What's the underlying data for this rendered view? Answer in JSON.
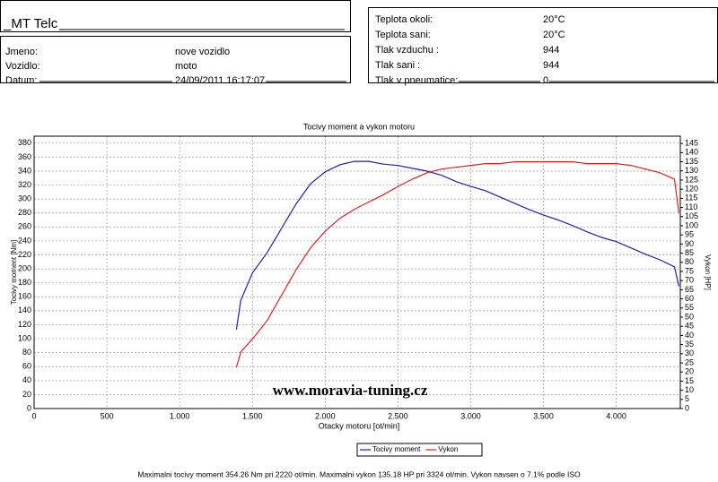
{
  "header": {
    "workshop": "_MT Telc",
    "left_rows": [
      [
        "Jmeno:",
        "nove vozidlo"
      ],
      [
        "Vozidlo:",
        "moto"
      ],
      [
        "Datum:",
        "24/09/2011 16:17:07"
      ]
    ],
    "right_rows": [
      [
        "Teplota okoli:",
        "20°C"
      ],
      [
        "Teplota sani:",
        "20°C"
      ],
      [
        "Tlak vzduchu :",
        "944"
      ],
      [
        "Tlak sani :",
        "944"
      ],
      [
        "Tlak v pneumatice:",
        "0"
      ]
    ]
  },
  "chart_data": {
    "type": "line",
    "title": "Tocivy moment a vykon motoru",
    "x_label": "Otacky motoru [ot/min]",
    "y_label": "Tocivy moment [Nm]",
    "y2_label": "Vykon [HP]",
    "watermark": "www.moravia-tuning.cz",
    "footer": "Maximalni tocivy moment 354.26 Nm pri 2220 ot/min.  Maximalni vykon 135.18 HP pri 3324 ot/min.  Vykon navsen o 7.1% podle ISO",
    "x": [
      1390,
      1420,
      1500,
      1600,
      1700,
      1800,
      1900,
      2000,
      2100,
      2200,
      2300,
      2400,
      2500,
      2600,
      2700,
      2800,
      2900,
      3000,
      3100,
      3200,
      3300,
      3400,
      3500,
      3600,
      3700,
      3800,
      3900,
      4000,
      4100,
      4200,
      4300,
      4400,
      4430
    ],
    "series": [
      {
        "name": "Tocivy moment",
        "color": "#1f1fb4",
        "values": [
          113,
          155,
          194,
          223,
          258,
          293,
          322,
          339,
          349,
          354,
          354,
          350,
          348,
          344,
          340,
          334,
          325,
          318,
          312,
          303,
          294,
          285,
          277,
          270,
          262,
          253,
          245,
          239,
          230,
          221,
          213,
          203,
          175
        ]
      },
      {
        "name": "Vykon",
        "color": "#e02020",
        "axis": "y2",
        "values": [
          22.5,
          31,
          38,
          48,
          62,
          76,
          88,
          97,
          104,
          109,
          113,
          117,
          121.5,
          125.5,
          129,
          131,
          132,
          133,
          134,
          134,
          135,
          135,
          135,
          135,
          135,
          134,
          134,
          134,
          133,
          131,
          129,
          125.5,
          107
        ]
      }
    ],
    "xlim": [
      0,
      4440
    ],
    "xticks": [
      0,
      500,
      {
        "value": 1000,
        "label": "1.000"
      },
      {
        "value": 1500,
        "label": "1.500"
      },
      {
        "value": 2000,
        "label": "2.000"
      },
      {
        "value": 2500,
        "label": "2.500"
      },
      {
        "value": 3000,
        "label": "3.000"
      },
      {
        "value": 3500,
        "label": "3.500"
      },
      {
        "value": 4000,
        "label": "4.000"
      }
    ],
    "ylim": [
      0,
      390
    ],
    "yticks": [
      0,
      20,
      40,
      60,
      80,
      100,
      120,
      140,
      160,
      180,
      200,
      220,
      240,
      260,
      280,
      300,
      320,
      340,
      360,
      380
    ],
    "y2lim": [
      0,
      149
    ],
    "y2ticks": [
      0,
      5,
      10,
      15,
      20,
      25,
      30,
      35,
      40,
      45,
      50,
      55,
      60,
      65,
      70,
      75,
      80,
      85,
      90,
      95,
      100,
      105,
      110,
      115,
      120,
      125,
      130,
      135,
      140,
      145
    ],
    "grid": true
  }
}
